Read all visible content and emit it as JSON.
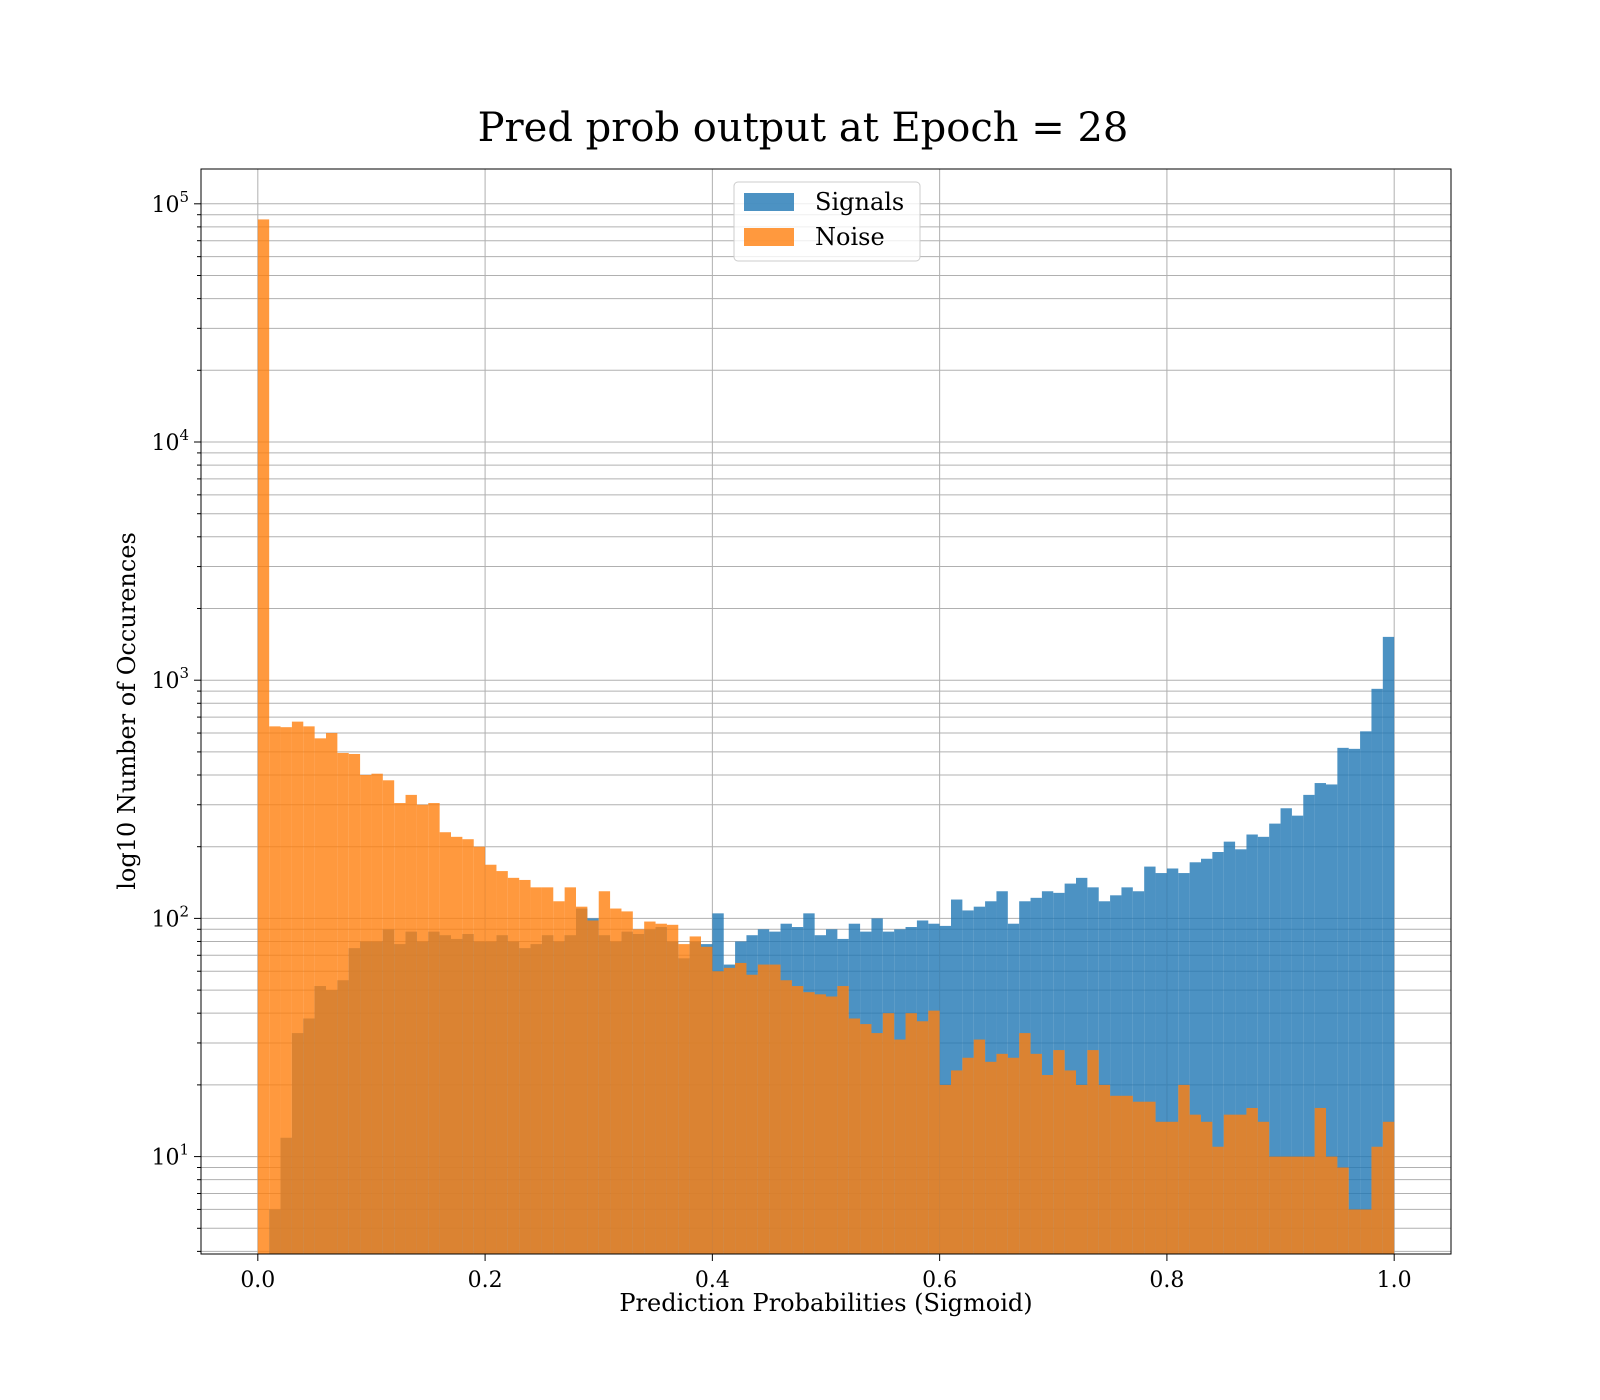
{
  "chart_data": {
    "type": "bar",
    "title": "Pred prob output at Epoch = 28",
    "xlabel": "Prediction Probabilities (Sigmoid)",
    "ylabel": "log10 Number of Occurences",
    "xlim": [
      -0.05,
      1.05
    ],
    "ylim": [
      3.9,
      140000
    ],
    "yscale": "log",
    "grid": true,
    "legend_position": "top-center",
    "bins": {
      "start": 0.0,
      "end": 1.0,
      "count": 100
    },
    "x_ticks": [
      {
        "value": 0.0,
        "label": "0.0"
      },
      {
        "value": 0.2,
        "label": "0.2"
      },
      {
        "value": 0.4,
        "label": "0.4"
      },
      {
        "value": 0.6,
        "label": "0.6"
      },
      {
        "value": 0.8,
        "label": "0.8"
      },
      {
        "value": 1.0,
        "label": "1.0"
      }
    ],
    "y_ticks": [
      {
        "value": 10,
        "base": "10",
        "exp": "1"
      },
      {
        "value": 100,
        "base": "10",
        "exp": "2"
      },
      {
        "value": 1000,
        "base": "10",
        "exp": "3"
      },
      {
        "value": 10000,
        "base": "10",
        "exp": "4"
      },
      {
        "value": 100000,
        "base": "10",
        "exp": "5"
      }
    ],
    "series": [
      {
        "name": "Signals",
        "color": "#1f77b4",
        "alpha": 0.8,
        "values": [
          0,
          6,
          12,
          33,
          38,
          52,
          50,
          55,
          75,
          80,
          80,
          90,
          78,
          88,
          80,
          88,
          85,
          82,
          86,
          80,
          80,
          85,
          80,
          75,
          78,
          85,
          80,
          85,
          110,
          100,
          85,
          80,
          88,
          86,
          90,
          92,
          80,
          68,
          80,
          78,
          105,
          64,
          80,
          85,
          90,
          88,
          95,
          92,
          105,
          85,
          90,
          82,
          95,
          88,
          100,
          88,
          90,
          92,
          98,
          95,
          93,
          120,
          108,
          112,
          118,
          130,
          95,
          118,
          122,
          130,
          128,
          140,
          148,
          135,
          118,
          125,
          135,
          130,
          165,
          155,
          162,
          155,
          172,
          178,
          190,
          210,
          195,
          225,
          220,
          250,
          290,
          270,
          330,
          370,
          365,
          520,
          515,
          610,
          920,
          1520
        ]
      },
      {
        "name": "Noise",
        "color": "#ff7f0e",
        "alpha": 0.8,
        "values": [
          86000,
          640,
          635,
          670,
          640,
          570,
          600,
          495,
          490,
          400,
          405,
          380,
          305,
          330,
          300,
          305,
          230,
          220,
          215,
          200,
          168,
          158,
          148,
          145,
          135,
          135,
          118,
          135,
          112,
          98,
          130,
          110,
          107,
          90,
          97,
          95,
          94,
          78,
          84,
          76,
          60,
          62,
          65,
          58,
          64,
          64,
          55,
          52,
          49,
          48,
          47,
          52,
          38,
          36,
          33,
          40,
          31,
          40,
          37,
          41,
          20,
          23,
          26,
          31,
          25,
          27,
          26,
          33,
          27,
          22,
          28,
          23,
          20,
          28,
          20,
          18,
          18,
          17,
          17,
          14,
          14,
          20,
          15,
          14,
          11,
          15,
          15,
          16,
          14,
          10,
          10,
          10,
          10,
          16,
          10,
          9,
          6,
          6,
          11,
          14
        ]
      }
    ]
  }
}
